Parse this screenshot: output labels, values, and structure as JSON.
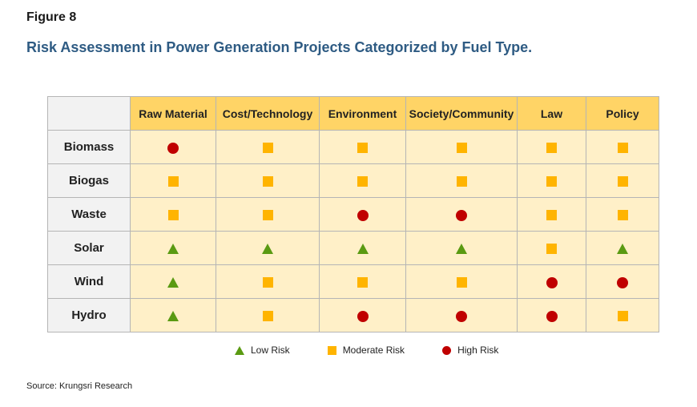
{
  "figure": {
    "label": "Figure 8",
    "title": "Risk Assessment in Power Generation Projects Categorized by Fuel Type."
  },
  "colors": {
    "low": "#5a9a12",
    "moderate": "#ffb400",
    "high": "#c00000",
    "header_bg": "#ffd466",
    "cell_bg": "#fff0c8",
    "title": "#2e5b83"
  },
  "chart_data": {
    "type": "table",
    "columns": [
      "Raw Material",
      "Cost/Technology",
      "Environment",
      "Society/Community",
      "Law",
      "Policy"
    ],
    "rows": [
      {
        "label": "Biomass",
        "values": [
          "high",
          "moderate",
          "moderate",
          "moderate",
          "moderate",
          "moderate"
        ]
      },
      {
        "label": "Biogas",
        "values": [
          "moderate",
          "moderate",
          "moderate",
          "moderate",
          "moderate",
          "moderate"
        ]
      },
      {
        "label": "Waste",
        "values": [
          "moderate",
          "moderate",
          "high",
          "high",
          "moderate",
          "moderate"
        ]
      },
      {
        "label": "Solar",
        "values": [
          "low",
          "low",
          "low",
          "low",
          "moderate",
          "low"
        ]
      },
      {
        "label": "Wind",
        "values": [
          "low",
          "moderate",
          "moderate",
          "moderate",
          "high",
          "high"
        ]
      },
      {
        "label": "Hydro",
        "values": [
          "low",
          "moderate",
          "high",
          "high",
          "high",
          "moderate"
        ]
      }
    ],
    "legend": [
      {
        "key": "low",
        "label": "Low Risk"
      },
      {
        "key": "moderate",
        "label": "Moderate Risk"
      },
      {
        "key": "high",
        "label": "High Risk"
      }
    ]
  },
  "source": "Source: Krungsri Research"
}
